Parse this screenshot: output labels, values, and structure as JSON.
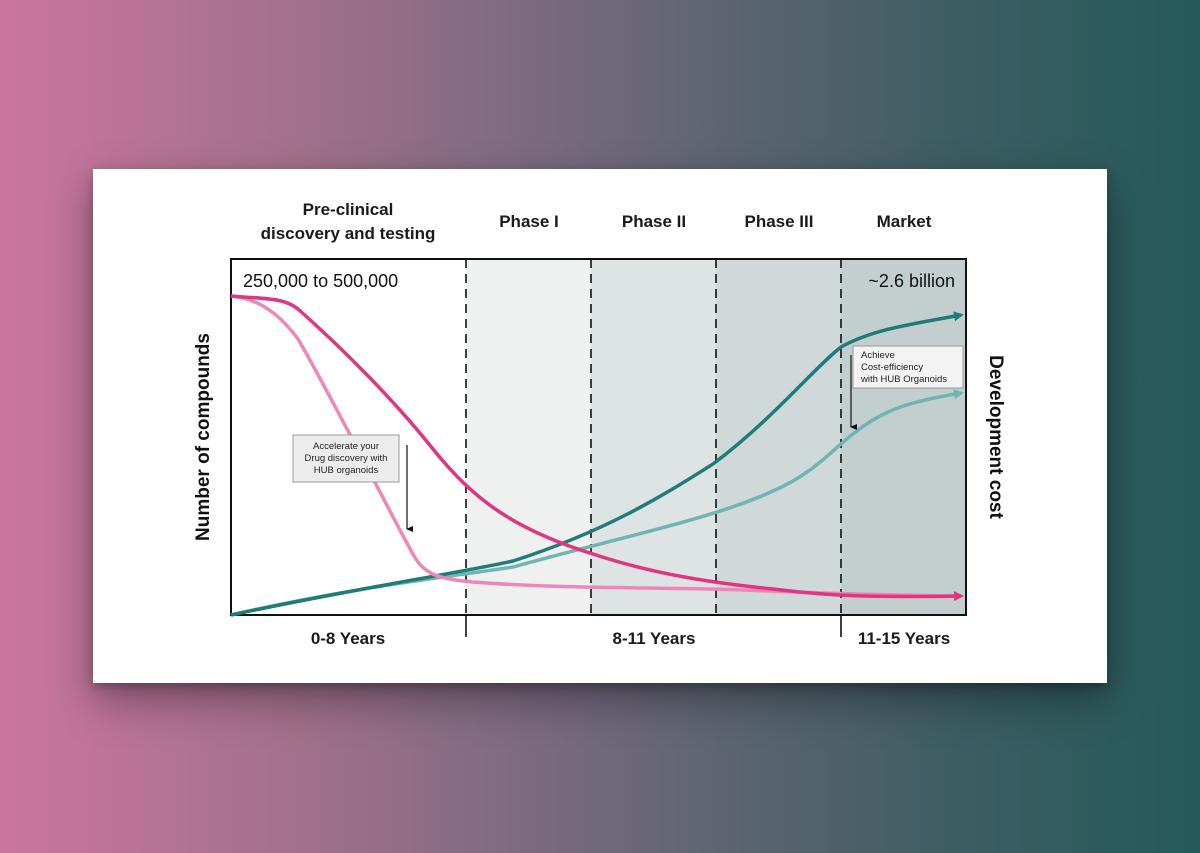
{
  "phases": {
    "preclinical_line1": "Pre-clinical",
    "preclinical_line2": "discovery and testing",
    "phase1": "Phase I",
    "phase2": "Phase II",
    "phase3": "Phase III",
    "market": "Market"
  },
  "durations": {
    "d1": "0-8 Years",
    "d2": "8-11 Years",
    "d3": "11-15 Years"
  },
  "axes": {
    "left": "Number of compounds",
    "right": "Development cost"
  },
  "values": {
    "compounds": "250,000 to 500,000",
    "cost": "~2.6 billion"
  },
  "callouts": {
    "left_l1": "Accelerate your",
    "left_l2": "Drug discovery with",
    "left_l3": "HUB organoids",
    "right_l1": "Achieve",
    "right_l2": "Cost-efficiency",
    "right_l3": "with HUB Organoids"
  },
  "colors": {
    "compounds_standard": "#e0357f",
    "compounds_hub": "#ef86b8",
    "cost_standard": "#1f7c78",
    "cost_hub": "#6fb5b2"
  }
}
